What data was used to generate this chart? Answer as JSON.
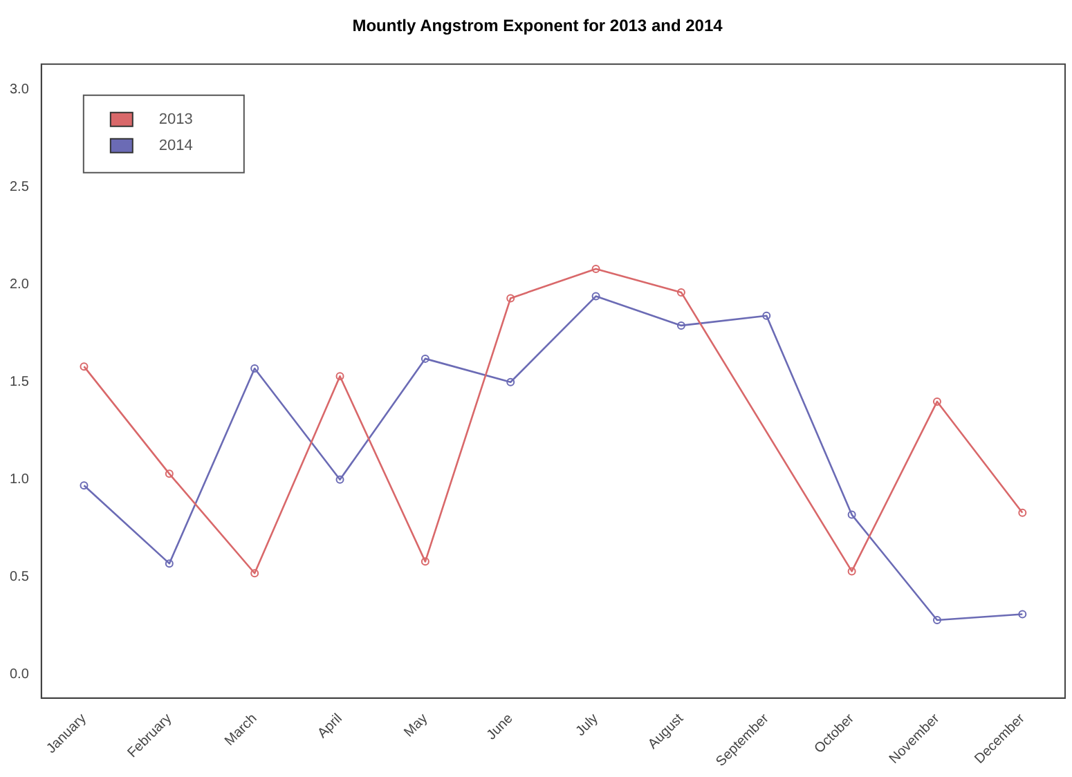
{
  "chart_data": {
    "type": "line",
    "title": "Mountly Angstrom Exponent for 2013 and 2014",
    "categories": [
      "January",
      "February",
      "March",
      "April",
      "May",
      "June",
      "July",
      "August",
      "September",
      "October",
      "November",
      "December"
    ],
    "series": [
      {
        "name": "2013",
        "color": "#d9686a",
        "values": [
          1.58,
          1.03,
          0.52,
          1.53,
          0.58,
          1.93,
          2.08,
          1.96,
          null,
          0.53,
          1.4,
          0.83
        ]
      },
      {
        "name": "2014",
        "color": "#6b6bb5",
        "values": [
          0.97,
          0.57,
          1.57,
          1.0,
          1.62,
          1.5,
          1.94,
          1.79,
          1.84,
          0.82,
          0.28,
          0.31
        ]
      }
    ],
    "ylim": [
      -0.12,
      3.13
    ],
    "yticks": [
      {
        "value": 0,
        "label": "0.0"
      },
      {
        "value": 0.5,
        "label": "0.5"
      },
      {
        "value": 1,
        "label": "1.0"
      },
      {
        "value": 1.5,
        "label": "1.5"
      },
      {
        "value": 2,
        "label": "2.0"
      },
      {
        "value": 2.5,
        "label": "2.5"
      },
      {
        "value": 3,
        "label": "3.0"
      }
    ],
    "grid": false,
    "legend": "top left",
    "marker": "circle",
    "line_style": "solid"
  }
}
